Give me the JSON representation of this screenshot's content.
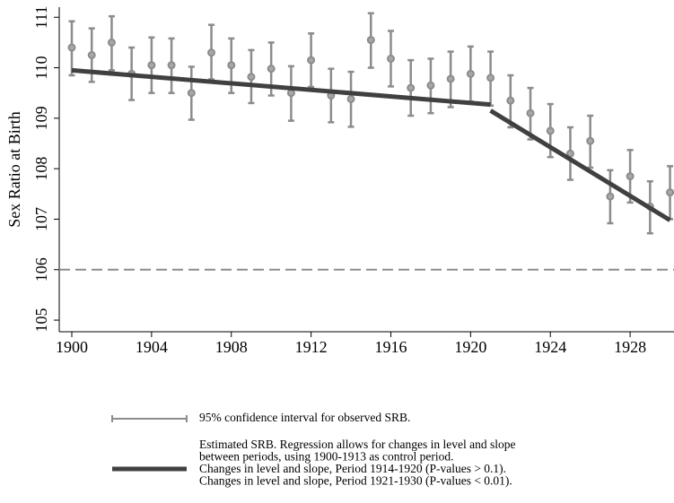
{
  "chart_data": {
    "type": "scatter",
    "ylabel": "Sex Ratio at Birth",
    "x": [
      1900,
      1901,
      1902,
      1903,
      1904,
      1905,
      1906,
      1907,
      1908,
      1909,
      1910,
      1911,
      1912,
      1913,
      1914,
      1915,
      1916,
      1917,
      1918,
      1919,
      1920,
      1921,
      1922,
      1923,
      1924,
      1925,
      1926,
      1927,
      1928,
      1929,
      1930
    ],
    "series": [
      {
        "name": "95% confidence interval for observed SRB.",
        "color": "#8c8c8c",
        "values": [
          110.4,
          110.25,
          110.5,
          109.88,
          110.05,
          110.05,
          109.5,
          110.3,
          110.05,
          109.82,
          109.98,
          109.5,
          110.15,
          109.45,
          109.38,
          110.55,
          110.18,
          109.6,
          109.65,
          109.78,
          109.88,
          109.8,
          109.35,
          109.1,
          108.75,
          108.3,
          108.55,
          107.45,
          107.85,
          107.25,
          107.53
        ],
        "lower": [
          109.85,
          109.72,
          109.95,
          109.36,
          109.5,
          109.5,
          108.97,
          109.77,
          109.5,
          109.3,
          109.45,
          108.95,
          109.62,
          108.92,
          108.83,
          110.0,
          109.63,
          109.05,
          109.1,
          109.22,
          109.33,
          109.25,
          108.82,
          108.58,
          108.23,
          107.78,
          108.02,
          106.92,
          107.33,
          106.72,
          107.0
        ],
        "upper": [
          110.92,
          110.78,
          111.02,
          110.4,
          110.6,
          110.58,
          110.02,
          110.85,
          110.58,
          110.35,
          110.5,
          110.03,
          110.68,
          109.98,
          109.92,
          111.08,
          110.73,
          110.15,
          110.18,
          110.32,
          110.42,
          110.32,
          109.85,
          109.6,
          109.28,
          108.82,
          109.05,
          107.97,
          108.37,
          107.75,
          108.05
        ]
      }
    ],
    "fit": {
      "name": [
        "Estimated SRB. Regression allows for changes in level and slope",
        "between periods, using 1900-1913 as control period.",
        "Changes in level and slope, Period 1914-1920 (P-values > 0.1).",
        "Changes in level and slope, Period 1921-1930 (P-values < 0.01)."
      ],
      "color": "#404040",
      "segments": [
        {
          "x": [
            1900,
            1921
          ],
          "values": [
            109.95,
            109.27
          ]
        },
        {
          "x": [
            1921,
            1930
          ],
          "values": [
            109.15,
            106.98
          ]
        }
      ]
    },
    "reference_line": {
      "value": 106,
      "color": "#8c8c8c",
      "dashed": true
    },
    "xlim": [
      1899.37,
      1930.2
    ],
    "ylim": [
      104.77,
      111.2
    ],
    "xticks": [
      1900,
      1904,
      1908,
      1912,
      1916,
      1920,
      1924,
      1928
    ],
    "yticks": [
      105,
      106,
      107,
      108,
      109,
      110,
      111
    ]
  }
}
